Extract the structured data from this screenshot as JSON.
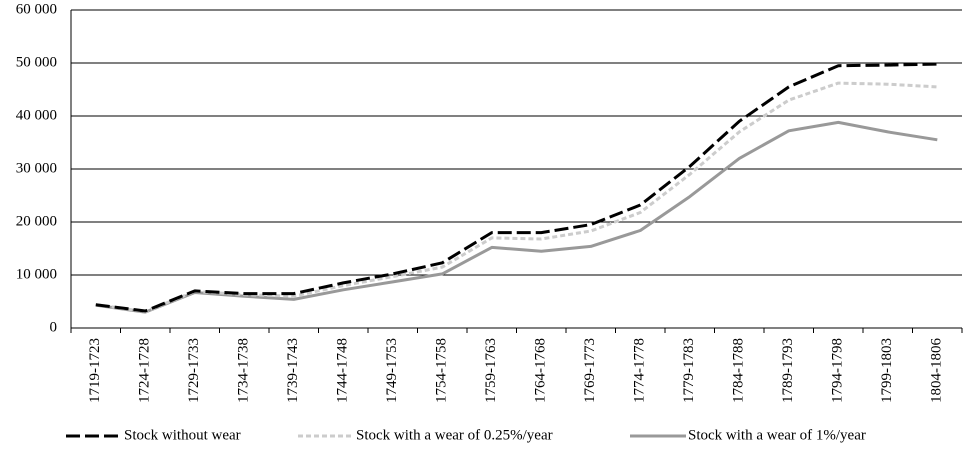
{
  "chart_data": {
    "type": "line",
    "categories": [
      "1719-1723",
      "1724-1728",
      "1729-1733",
      "1734-1738",
      "1739-1743",
      "1744-1748",
      "1749-1753",
      "1754-1758",
      "1759-1763",
      "1764-1768",
      "1769-1773",
      "1774-1778",
      "1779-1783",
      "1784-1788",
      "1789-1793",
      "1794-1798",
      "1799-1803",
      "1804-1806"
    ],
    "series": [
      {
        "name": "Stock without wear",
        "color": "#000000",
        "dash": "14,5",
        "values": [
          4400,
          3200,
          7000,
          6500,
          6500,
          8500,
          10200,
          12300,
          18000,
          18000,
          19500,
          23200,
          30500,
          39000,
          45500,
          49500,
          49600,
          49800
        ]
      },
      {
        "name": "Stock with a wear of 0.25%/year",
        "color": "#cccccc",
        "dash": "5,3",
        "values": [
          4400,
          3100,
          6900,
          6300,
          6000,
          8000,
          9700,
          11500,
          17000,
          16800,
          18300,
          21800,
          29000,
          37000,
          43000,
          46200,
          46000,
          45500
        ]
      },
      {
        "name": "Stock with a wear of 1%/year",
        "color": "#999999",
        "dash": "none",
        "values": [
          4300,
          3000,
          6700,
          6000,
          5400,
          7200,
          8700,
          10200,
          15200,
          14500,
          15400,
          18400,
          24800,
          32000,
          37200,
          38800,
          37000,
          35500
        ]
      }
    ],
    "ylim": [
      0,
      60000
    ],
    "yticks": [
      0,
      {
        "value": 10000,
        "label": "10 000"
      },
      {
        "value": 20000,
        "label": "20 000"
      },
      {
        "value": 30000,
        "label": "30 000"
      },
      {
        "value": 40000,
        "label": "40 000"
      },
      {
        "value": 50000,
        "label": "50 000"
      },
      {
        "value": 60000,
        "label": "60 000"
      }
    ],
    "grid": true,
    "legend": "bottom"
  }
}
